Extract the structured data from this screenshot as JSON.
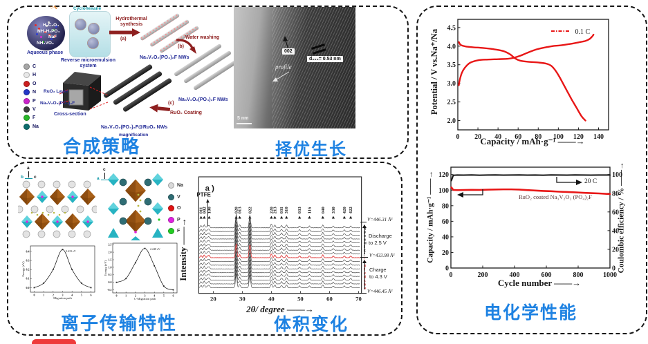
{
  "captions": {
    "synthesis": "合成策略",
    "growth": "择优生长",
    "transport": "离子传输特性",
    "volume": "体积变化",
    "electrochem": "电化学性能"
  },
  "synthesis": {
    "aqueous": {
      "caption": "Aqueous phase",
      "species": [
        "H₂C₂O₄",
        "NH₄H₂PO₄",
        "NaF",
        "NH₄VO₃"
      ]
    },
    "beaker": {
      "solvent": "Cyclohexane",
      "caption_l1": "Reverse microemulsion",
      "caption_l2": "system"
    },
    "step_a": {
      "l1": "Hydrothermal",
      "l2": "synthesis",
      "tag": "(a)"
    },
    "step_b": {
      "l1": "Water washing",
      "tag": "(b)"
    },
    "step_c": {
      "l1": "RuO₂ Coating",
      "tag": "(c)"
    },
    "nw1": "Na₃V₂O₂(PO₄)₂F  NWs",
    "nw2": "Na₃V₂O₂(PO₄)₂F  NWs",
    "nw3": "Na₃V₂O₂(PO₄)₂F@RuO₂  NWs",
    "magnification": "magnification",
    "cross": {
      "layer": "RuO₂ Layer",
      "core": "Na₃V₂O₂(PO₄)₂F",
      "caption": "Cross-section"
    },
    "atoms": [
      {
        "symbol": "C",
        "color": "#a6a6a6"
      },
      {
        "symbol": "H",
        "color": "#e8e8e8"
      },
      {
        "symbol": "O",
        "color": "#cc1f1f"
      },
      {
        "symbol": "N",
        "color": "#2437c8"
      },
      {
        "symbol": "P",
        "color": "#cc22cc"
      },
      {
        "symbol": "V",
        "color": "#3d3d3d"
      },
      {
        "symbol": "F",
        "color": "#29b829"
      },
      {
        "symbol": "Na",
        "color": "#0d6e6e"
      }
    ]
  },
  "tem": {
    "plane": "002",
    "spacing": "d₀₀₂= 0.53 nm",
    "profile": "profile",
    "scale": "5 nm"
  },
  "structure": {
    "axis_left": {
      "v": "a",
      "h1": "b",
      "h2": "c"
    },
    "axis_right": {
      "v": "c",
      "h1": "a",
      "h2": "b"
    },
    "atoms": [
      {
        "symbol": "Na",
        "color": "#d9d9d9"
      },
      {
        "symbol": "V",
        "color": "#2f6d74"
      },
      {
        "symbol": "O",
        "color": "#e01212"
      },
      {
        "symbol": "P",
        "color": "#e022e0"
      },
      {
        "symbol": "F",
        "color": "#22cc22"
      }
    ]
  },
  "chart_data": [
    {
      "id": "galvanostatic_profile",
      "type": "line",
      "xlabel": "Capacity / mAh·g⁻¹ ——→",
      "ylabel": "Potential / V vs.Na⁺/Na",
      "xlim": [
        0,
        150
      ],
      "ylim": [
        1.75,
        4.72
      ],
      "xticks": [
        "0",
        "20",
        "40",
        "60",
        "80",
        "100",
        "120",
        "140"
      ],
      "yticks": [
        "2.0",
        "2.5",
        "3.0",
        "3.5",
        "4.0",
        "4.5"
      ],
      "legend_label": "0.1 C",
      "legend_color": "#e81717",
      "series": [
        {
          "name": "charge",
          "color": "#e81717",
          "width": 2.4,
          "smooth": true,
          "x": [
            1,
            2,
            4,
            7,
            12,
            20,
            30,
            40,
            50,
            56,
            62,
            70,
            78,
            86,
            94,
            102,
            112,
            120,
            127,
            131,
            134,
            135
          ],
          "y": [
            2.95,
            3.1,
            3.28,
            3.42,
            3.55,
            3.62,
            3.64,
            3.65,
            3.66,
            3.69,
            3.74,
            3.83,
            3.91,
            3.96,
            4.0,
            4.02,
            4.06,
            4.1,
            4.14,
            4.19,
            4.27,
            4.31
          ]
        },
        {
          "name": "discharge",
          "color": "#e81717",
          "width": 2.4,
          "smooth": true,
          "x": [
            1,
            3,
            8,
            15,
            25,
            35,
            45,
            52,
            57,
            62,
            70,
            80,
            88,
            93,
            97,
            101,
            105,
            109,
            113,
            118,
            123,
            127
          ],
          "y": [
            4.11,
            4.03,
            3.99,
            3.97,
            3.95,
            3.92,
            3.87,
            3.78,
            3.67,
            3.61,
            3.58,
            3.56,
            3.53,
            3.47,
            3.35,
            3.18,
            2.98,
            2.78,
            2.58,
            2.35,
            2.12,
            2.0
          ]
        }
      ]
    },
    {
      "id": "cycling_stability",
      "type": "line",
      "xlabel": "Cycle number ——→",
      "ylabel_left": "Capacity / mAh·g⁻¹ ——→",
      "ylabel_right": "Coulombic efficiency / % ——→",
      "xlim": [
        0,
        1000
      ],
      "ylim_left": [
        0,
        129.5
      ],
      "ylim_right": [
        0,
        107.9
      ],
      "xticks": [
        "0",
        "200",
        "400",
        "600",
        "800",
        "1000"
      ],
      "yticks_left": [
        "0",
        "20",
        "40",
        "60",
        "80",
        "100",
        "120"
      ],
      "yticks_right": [
        "0",
        "20",
        "40",
        "60",
        "80",
        "100"
      ],
      "label_rate": "20 C",
      "label_material": "RuO₂ coated Na₃V₂O₂ (PO₄)₂F",
      "series": [
        {
          "name": "capacity",
          "axis": "left",
          "color": "#e81717",
          "width": 2.6,
          "x": [
            3,
            15,
            40,
            80,
            130,
            180,
            230,
            280,
            330,
            380,
            430,
            480,
            530,
            580,
            630,
            680,
            730,
            780,
            830,
            880,
            930,
            980,
            1000
          ],
          "y": [
            103.5,
            100.3,
            100,
            100.2,
            100.4,
            100.3,
            100.6,
            100.8,
            101,
            101,
            100.7,
            100.1,
            99.5,
            99,
            98.6,
            98,
            97.6,
            97.2,
            96.6,
            96.2,
            95.8,
            95.2,
            95
          ]
        },
        {
          "name": "coulombic_efficiency",
          "axis": "right",
          "color": "#141414",
          "width": 2,
          "x": [
            3,
            15,
            40,
            80,
            130,
            180,
            230,
            280,
            330,
            380,
            430,
            480,
            530,
            580,
            630,
            680,
            730,
            780,
            830,
            880,
            930,
            980,
            1000
          ],
          "y": [
            93.5,
            99.2,
            99.5,
            99.4,
            99.6,
            99.3,
            99.5,
            99.6,
            99.4,
            99.5,
            99.6,
            99.4,
            99.5,
            99.3,
            99.6,
            99.5,
            99.4,
            99.6,
            99.5,
            99.4,
            99.5,
            99.5,
            99.5
          ]
        }
      ]
    },
    {
      "id": "migration_barrier_ab",
      "type": "line",
      "xlabel": "Migration path",
      "ylabel": "Energy (eV)",
      "annotation": "0.419 eV",
      "xlim": [
        -0.4,
        6.4
      ],
      "ylim": [
        -0.05,
        0.46
      ],
      "xticks": [
        "0",
        "1",
        "2",
        "3",
        "4",
        "5",
        "6"
      ],
      "yticks": [
        "0.0",
        "0.1",
        "0.2",
        "0.3",
        "0.4"
      ],
      "series": [
        {
          "name": "energy",
          "color": "#222222",
          "width": 1.6,
          "smooth": true,
          "markers": true,
          "x": [
            0,
            1,
            2,
            3,
            4,
            5,
            6
          ],
          "y": [
            0,
            0.05,
            0.2,
            0.42,
            0.2,
            0.05,
            0
          ]
        }
      ]
    },
    {
      "id": "migration_barrier_c",
      "type": "line",
      "xlabel": "C-Migration path",
      "ylabel": "Energy (eV)",
      "annotation": "2.248 eV",
      "xlim": [
        -0.4,
        6.4
      ],
      "ylim": [
        -0.7,
        2.6
      ],
      "xticks": [
        "0",
        "1",
        "2",
        "3",
        "4",
        "5",
        "6"
      ],
      "yticks": [
        "-0.5",
        "0.0",
        "0.5",
        "1.0",
        "1.5",
        "2.0",
        "2.5"
      ],
      "series": [
        {
          "name": "energy",
          "color": "#222222",
          "width": 1.6,
          "smooth": true,
          "markers": true,
          "x": [
            0,
            1,
            2,
            3,
            4,
            5,
            6
          ],
          "y": [
            0,
            0.25,
            1.3,
            2.25,
            1.1,
            -0.25,
            -0.5
          ]
        }
      ]
    },
    {
      "id": "in_situ_xrd",
      "type": "xrd",
      "panel_label": "a )",
      "ptfe": "PTFE",
      "xlabel": "2θ/ degree ——→",
      "ylabel": "Intensity ——→",
      "xlim": [
        15,
        71
      ],
      "xticks": [
        "20",
        "30",
        "40",
        "50",
        "60",
        "70"
      ],
      "ptfe_x": 18.1,
      "peaks": [
        {
          "hkl": "011",
          "x": 15.8,
          "h": 0.16
        },
        {
          "hkl": "002",
          "x": 16.9,
          "h": 0.2
        },
        {
          "hkl": "100",
          "x": 18.6,
          "h": 0.13
        },
        {
          "hkl": "020",
          "x": 27.9,
          "h": 1.0
        },
        {
          "hkl": "013",
          "x": 29.1,
          "h": 0.22
        },
        {
          "hkl": "022",
          "x": 32.6,
          "h": 0.95
        },
        {
          "hkl": "220",
          "x": 40.0,
          "h": 0.28
        },
        {
          "hkl": "213",
          "x": 41.2,
          "h": 0.2
        },
        {
          "hkl": "031",
          "x": 43.5,
          "h": 0.16
        },
        {
          "hkl": "310",
          "x": 45.2,
          "h": 0.2
        },
        {
          "hkl": "033",
          "x": 49.7,
          "h": 0.13
        },
        {
          "hkl": "116",
          "x": 53.1,
          "h": 0.13
        },
        {
          "hkl": "040",
          "x": 57.7,
          "h": 0.2
        },
        {
          "hkl": "330",
          "x": 61.3,
          "h": 0.12
        },
        {
          "hkl": "420",
          "x": 65.1,
          "h": 0.12
        },
        {
          "hkl": "422",
          "x": 67.3,
          "h": 0.12
        }
      ],
      "stack_letters": [
        "q",
        "p",
        "o",
        "n",
        "m",
        "l",
        "k",
        "j",
        "i",
        "h",
        "g",
        "f",
        "e",
        "d",
        "c",
        "b",
        "a"
      ],
      "red_index": 8,
      "volumes": {
        "top": "V=446.31 Å³",
        "mid": "V=433.98 Å³",
        "bottom": "V=446.45 Å³"
      },
      "process": {
        "discharge_l1": "Discharge",
        "discharge_l2": "to 2.5 V",
        "charge_l1": "Charge",
        "charge_l2": "to 4.3 V"
      }
    }
  ]
}
